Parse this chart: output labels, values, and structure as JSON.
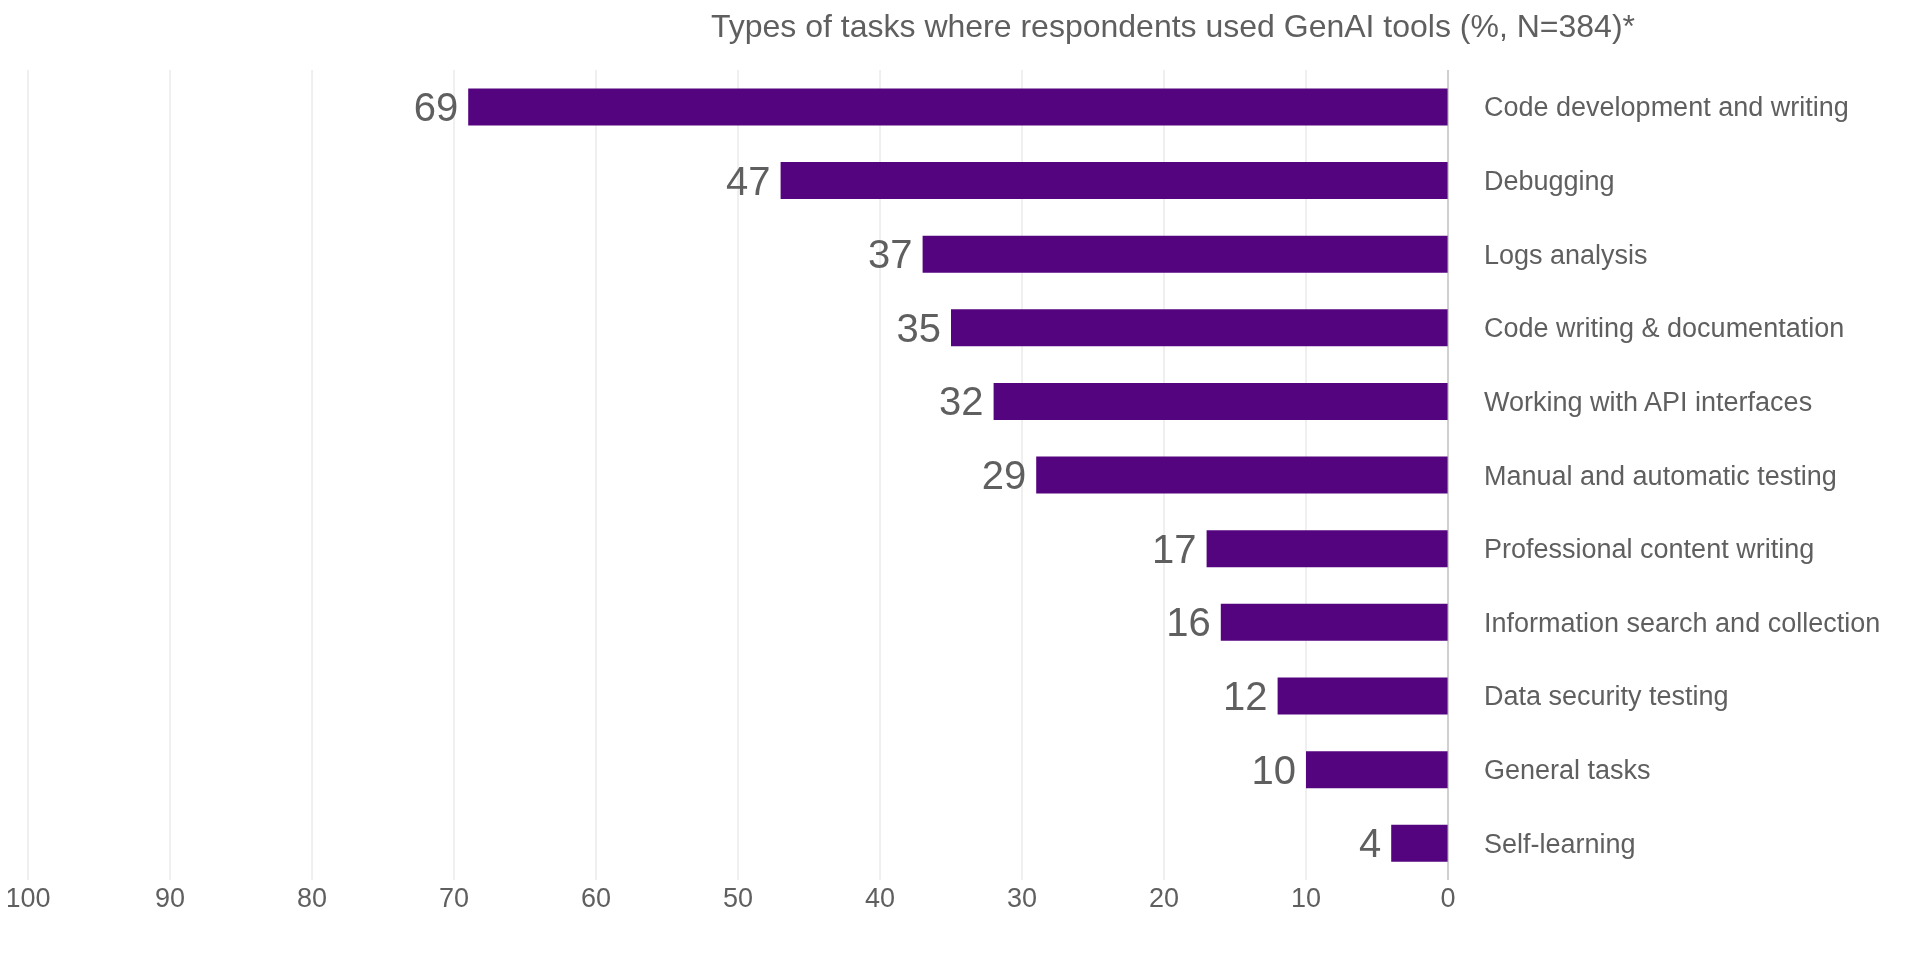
{
  "chart_data": {
    "type": "bar",
    "orientation": "horizontal",
    "title": "Types of tasks where respondents used GenAI tools (%, N=384)*",
    "categories": [
      "Code development and writing",
      "Debugging",
      "Logs analysis",
      "Code writing & documentation",
      "Working with API interfaces",
      "Manual and automatic testing",
      "Professional content writing",
      "Information search and collection",
      "Data security testing",
      "General tasks",
      "Self-learning"
    ],
    "values": [
      69,
      47,
      37,
      35,
      32,
      29,
      17,
      16,
      12,
      10,
      4
    ],
    "color": "#55047f",
    "xlim": [
      100,
      0
    ],
    "xticks": [
      100,
      90,
      80,
      70,
      60,
      50,
      40,
      30,
      20,
      10,
      0
    ],
    "grid": "x",
    "data_labels": true,
    "legend": false
  }
}
